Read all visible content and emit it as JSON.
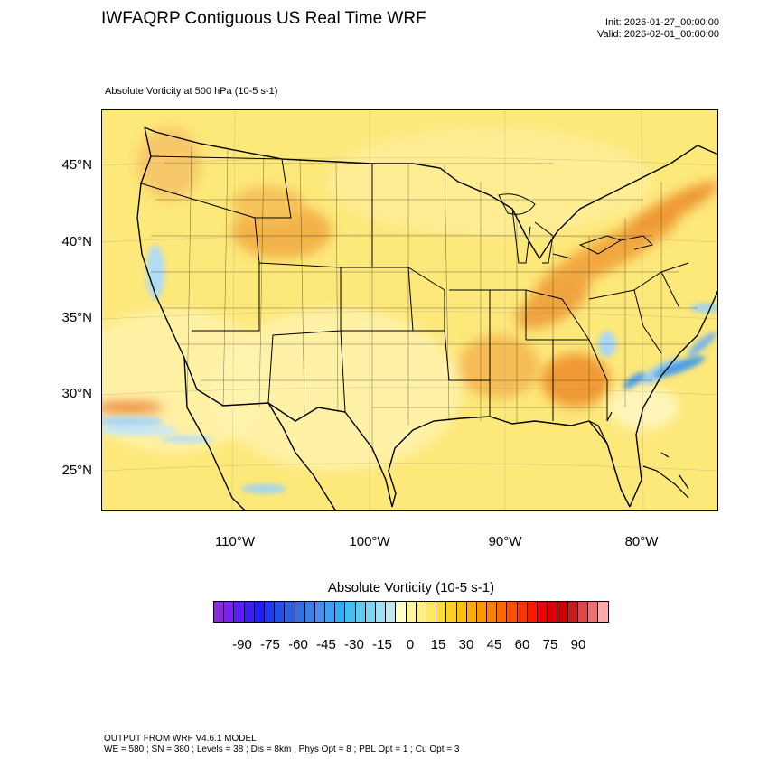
{
  "header": {
    "title": "IWFAQRP Contiguous US Real Time WRF",
    "init": "Init: 2026-01-27_00:00:00",
    "valid": "Valid: 2026-02-01_00:00:00"
  },
  "plot_label": "Absolute Vorticity at 500 hPa   (10-5 s-1)",
  "map": {
    "projection": "Lambert conformal (CONUS)",
    "lat_labels": [
      "45°N",
      "40°N",
      "35°N",
      "30°N",
      "25°N"
    ],
    "lon_labels": [
      "110°W",
      "100°W",
      "90°W",
      "80°W"
    ],
    "field": "500 hPa absolute vorticity, mostly positive (yellow/orange), with orange maxima over Montana/Wyoming, the Ohio Valley to New England, and Georgia; blue minima off the Southeast coast and over the eastern Pacific"
  },
  "colorbar": {
    "title": "Absolute Vorticity  (10-5 s-1)",
    "tick_labels": [
      "-90",
      "-75",
      "-60",
      "-45",
      "-30",
      "-15",
      "0",
      "15",
      "30",
      "45",
      "60",
      "75",
      "90"
    ],
    "colors": [
      "#8a2be2",
      "#7b22f0",
      "#5c1ef5",
      "#3a1cf5",
      "#1f1ff5",
      "#1d3af3",
      "#2250e8",
      "#2a5fe0",
      "#3270e0",
      "#3a80e6",
      "#4a8ef0",
      "#3f9ff5",
      "#30b0f7",
      "#40bff5",
      "#60c9f2",
      "#80d4f0",
      "#a0dff0",
      "#c0e8f2",
      "#ffffc8",
      "#fff5a0",
      "#ffef80",
      "#ffe760",
      "#ffdc3a",
      "#ffd020",
      "#ffc010",
      "#ffac00",
      "#ff9800",
      "#ff8000",
      "#ff6800",
      "#ff5000",
      "#ff3400",
      "#ff1800",
      "#f00000",
      "#dc0000",
      "#c80000",
      "#c81c1c",
      "#e04848",
      "#f07070",
      "#ffaaaa"
    ]
  },
  "footer": {
    "line1": "OUTPUT FROM WRF V4.6.1 MODEL",
    "line2": "WE = 580 ; SN = 380 ; Levels = 38 ; Dis = 8km ; Phys Opt = 8 ; PBL Opt = 1 ; Cu Opt = 3"
  }
}
